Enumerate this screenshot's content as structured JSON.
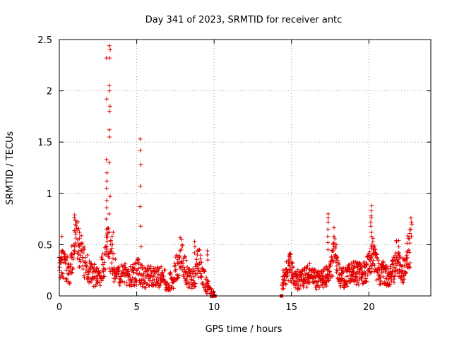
{
  "chart_data": {
    "type": "scatter",
    "title": "Day 341 of 2023, SRMTID for receiver antc",
    "xlabel": "GPS time / hours",
    "ylabel": "SRMTID / TECUs",
    "xlim": [
      0,
      24
    ],
    "ylim": [
      0,
      2.5
    ],
    "x_ticks": [
      0,
      5,
      10,
      15,
      20
    ],
    "x_tick_labels": [
      "0",
      "5",
      "10",
      "15",
      "20"
    ],
    "y_ticks": [
      0,
      0.5,
      1,
      1.5,
      2,
      2.5
    ],
    "y_tick_labels": [
      "0",
      "0.5",
      "1",
      "1.5",
      "2",
      "2.5"
    ],
    "grid": true,
    "series": [
      {
        "name": "SRMTID",
        "marker": "plus",
        "color": "#e00000",
        "segments": [
          {
            "x_start": 0.0,
            "x_end": 10.0,
            "base": [
              0.25,
              0.26,
              0.28,
              0.27,
              0.24,
              0.22,
              0.22,
              0.26,
              0.38,
              0.52,
              0.58,
              0.48,
              0.4,
              0.38,
              0.33,
              0.28,
              0.26,
              0.23,
              0.21,
              0.2,
              0.18,
              0.17,
              0.16,
              0.18,
              0.2,
              0.25,
              0.3,
              0.36,
              0.48,
              0.42,
              0.33,
              0.28,
              0.24,
              0.22,
              0.2,
              0.19,
              0.18,
              0.18,
              0.18,
              0.17,
              0.17,
              0.17,
              0.18,
              0.18,
              0.18,
              0.2,
              0.22,
              0.2,
              0.18,
              0.16,
              0.16,
              0.17,
              0.18,
              0.18,
              0.17,
              0.17,
              0.17,
              0.17,
              0.17,
              0.17,
              0.16,
              0.14,
              0.13,
              0.12,
              0.12,
              0.12,
              0.14,
              0.18,
              0.24,
              0.3,
              0.36,
              0.38,
              0.32,
              0.24,
              0.18,
              0.15,
              0.14,
              0.14,
              0.15,
              0.18,
              0.24,
              0.3,
              0.25,
              0.2,
              0.16,
              0.12,
              0.08,
              0.05,
              0.02,
              0.0,
              0.0
            ]
          },
          {
            "x_start": 14.4,
            "x_end": 22.7,
            "base": [
              0.14,
              0.16,
              0.2,
              0.25,
              0.28,
              0.22,
              0.16,
              0.14,
              0.14,
              0.14,
              0.15,
              0.16,
              0.16,
              0.17,
              0.18,
              0.18,
              0.17,
              0.15,
              0.14,
              0.13,
              0.13,
              0.14,
              0.15,
              0.17,
              0.19,
              0.22,
              0.28,
              0.45,
              0.35,
              0.24,
              0.18,
              0.16,
              0.15,
              0.16,
              0.17,
              0.18,
              0.2,
              0.2,
              0.21,
              0.2,
              0.19,
              0.19,
              0.19,
              0.2,
              0.22,
              0.25,
              0.28,
              0.38,
              0.36,
              0.26,
              0.21,
              0.2,
              0.2,
              0.2,
              0.19,
              0.19,
              0.18,
              0.2,
              0.22,
              0.26,
              0.38,
              0.3,
              0.24,
              0.22,
              0.24,
              0.3,
              0.48,
              0.35
            ]
          }
        ],
        "spikes": [
          {
            "x": 0.15,
            "y": [
              0.35,
              0.42,
              0.58
            ]
          },
          {
            "x": 1.0,
            "y": [
              0.62,
              0.7,
              0.76,
              0.79
            ]
          },
          {
            "x": 1.3,
            "y": [
              0.5,
              0.56,
              0.62
            ]
          },
          {
            "x": 3.05,
            "y": [
              0.65,
              0.75,
              0.86,
              0.93,
              1.05,
              1.12,
              1.2,
              1.33,
              1.92,
              2.32
            ]
          },
          {
            "x": 3.25,
            "y": [
              0.62,
              0.8,
              0.97,
              1.3,
              1.55,
              1.62,
              1.8,
              1.85,
              2.0,
              2.05,
              2.32,
              2.4,
              2.44
            ]
          },
          {
            "x": 3.45,
            "y": [
              0.5,
              0.58,
              0.62
            ]
          },
          {
            "x": 5.25,
            "y": [
              0.48,
              0.68,
              0.87,
              1.07,
              1.28,
              1.42,
              1.53
            ]
          },
          {
            "x": 8.75,
            "y": [
              0.42,
              0.48,
              0.53
            ]
          },
          {
            "x": 9.6,
            "y": [
              0.35,
              0.4,
              0.44
            ]
          },
          {
            "x": 17.35,
            "y": [
              0.45,
              0.52,
              0.58,
              0.65,
              0.72,
              0.76,
              0.8
            ]
          },
          {
            "x": 20.15,
            "y": [
              0.48,
              0.58,
              0.62,
              0.68,
              0.72,
              0.76,
              0.78,
              0.83,
              0.88
            ]
          },
          {
            "x": 20.35,
            "y": [
              0.42,
              0.45
            ]
          },
          {
            "x": 21.95,
            "y": [
              0.42,
              0.48,
              0.54
            ]
          },
          {
            "x": 22.75,
            "y": [
              0.58,
              0.65,
              0.7,
              0.72,
              0.76
            ]
          }
        ],
        "markers_at_zero": [
          10.05,
          14.35
        ]
      }
    ]
  }
}
